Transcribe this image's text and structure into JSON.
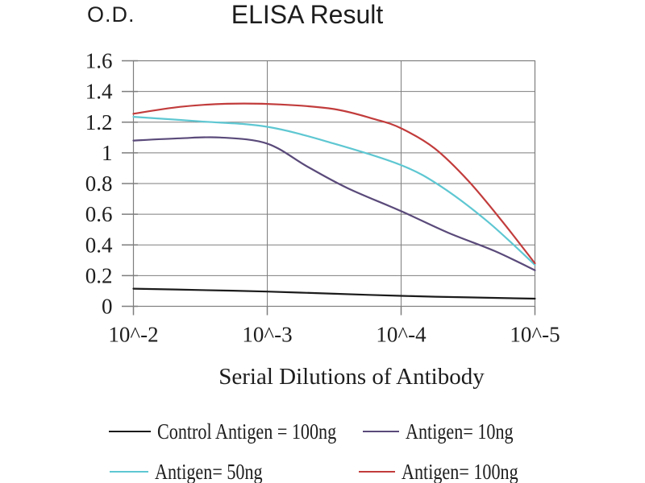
{
  "figure": {
    "title": "ELISA Result",
    "y_unit_label": "O.D."
  },
  "x_axis": {
    "title": "Serial Dilutions of Antibody",
    "tick_labels": [
      "10^-2",
      "10^-3",
      "10^-4",
      "10^-5"
    ]
  },
  "y_axis": {
    "tick_labels": [
      "0",
      "0.2",
      "0.4",
      "0.6",
      "0.8",
      "1",
      "1.2",
      "1.4",
      "1.6"
    ],
    "min": 0,
    "max": 1.6,
    "step": 0.2
  },
  "colors": {
    "grid": "#7e7e7e",
    "text": "#1d1d1d",
    "background": "#ffffff"
  },
  "chart_data": {
    "type": "line",
    "title": "ELISA Result",
    "xlabel": "Serial Dilutions of Antibody",
    "ylabel": "O.D.",
    "x_categories": [
      "10^-2",
      "10^-3",
      "10^-4",
      "10^-5"
    ],
    "ylim": [
      0,
      1.6
    ],
    "ytick_step": 0.2,
    "grid": true,
    "legend_position": "bottom",
    "series": [
      {
        "id": "control-antigen-100ng",
        "name": "Control Antigen = 100ng",
        "color": "#1b1b1b",
        "values": [
          0.12,
          0.1,
          0.07,
          0.05
        ],
        "curve_points": [
          [
            0,
            0.115
          ],
          [
            0.5,
            0.106
          ],
          [
            1,
            0.096
          ],
          [
            1.5,
            0.082
          ],
          [
            2,
            0.068
          ],
          [
            2.5,
            0.058
          ],
          [
            3,
            0.05
          ]
        ]
      },
      {
        "id": "antigen-10ng",
        "name": "Antigen= 10ng",
        "color": "#5a4a7a",
        "values": [
          1.08,
          1.06,
          0.62,
          0.23
        ],
        "curve_points": [
          [
            0,
            1.08
          ],
          [
            0.35,
            1.095
          ],
          [
            0.65,
            1.1
          ],
          [
            1,
            1.06
          ],
          [
            1.3,
            0.91
          ],
          [
            1.6,
            0.77
          ],
          [
            2,
            0.62
          ],
          [
            2.35,
            0.48
          ],
          [
            2.7,
            0.36
          ],
          [
            3,
            0.235
          ]
        ]
      },
      {
        "id": "antigen-50ng",
        "name": "Antigen= 50ng",
        "color": "#5ec7d2",
        "values": [
          1.24,
          1.17,
          0.92,
          0.27
        ],
        "curve_points": [
          [
            0,
            1.235
          ],
          [
            0.5,
            1.205
          ],
          [
            1,
            1.17
          ],
          [
            1.5,
            1.06
          ],
          [
            2,
            0.92
          ],
          [
            2.3,
            0.78
          ],
          [
            2.65,
            0.55
          ],
          [
            3,
            0.27
          ]
        ]
      },
      {
        "id": "antigen-100ng",
        "name": "Antigen= 100ng",
        "color": "#c23c3c",
        "values": [
          1.26,
          1.31,
          1.16,
          0.28
        ],
        "curve_points": [
          [
            0,
            1.255
          ],
          [
            0.35,
            1.3
          ],
          [
            0.7,
            1.32
          ],
          [
            1.1,
            1.315
          ],
          [
            1.5,
            1.285
          ],
          [
            1.8,
            1.22
          ],
          [
            2,
            1.16
          ],
          [
            2.25,
            1.03
          ],
          [
            2.5,
            0.82
          ],
          [
            2.75,
            0.56
          ],
          [
            3,
            0.28
          ]
        ]
      }
    ]
  }
}
